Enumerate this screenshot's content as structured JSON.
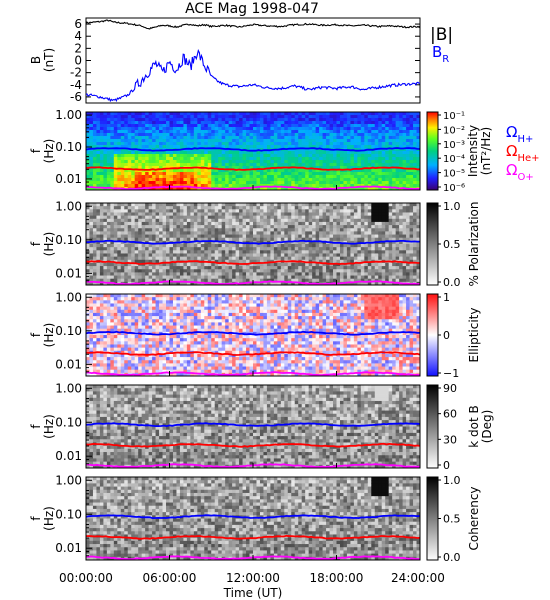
{
  "chart_data": [
    {
      "type": "line",
      "title": "ACE Mag 1998-047",
      "ylabel": "B",
      "yunit": "(nT)",
      "ylim": [
        -7,
        7
      ],
      "yticks": [
        "6",
        "4",
        "2",
        "0",
        "-2",
        "-4",
        "-6"
      ],
      "ytick_values": [
        6,
        4,
        2,
        0,
        -2,
        -4,
        -6
      ],
      "xlim_hours": [
        0,
        24
      ],
      "legend_placement": "right",
      "legend": [
        {
          "symbol": "|B|",
          "sub": "",
          "color": "#000000"
        },
        {
          "symbol": "B",
          "sub": "R",
          "color": "#0000ff"
        }
      ],
      "series": [
        {
          "name": "|B|",
          "color": "#000000",
          "x": [
            0,
            1,
            1.6,
            2,
            3,
            4,
            4.5,
            5,
            5.5,
            6,
            6.5,
            7,
            7.5,
            8,
            8.5,
            9,
            10,
            11,
            12,
            13,
            14,
            15,
            16,
            17,
            18,
            19,
            20,
            21,
            22,
            23,
            24
          ],
          "y": [
            6.2,
            6.4,
            6.6,
            6.3,
            6.1,
            5.7,
            5.2,
            5.5,
            5.8,
            5.7,
            5.5,
            5.8,
            6.0,
            5.7,
            5.9,
            5.6,
            5.8,
            5.5,
            5.9,
            5.7,
            5.6,
            5.9,
            6.0,
            5.8,
            5.9,
            5.7,
            5.8,
            5.6,
            5.7,
            5.5,
            5.6
          ]
        },
        {
          "name": "B_R",
          "color": "#0000ff",
          "x": [
            0,
            0.5,
            1,
            1.5,
            2,
            2.5,
            3,
            3.5,
            4,
            4.5,
            5,
            5.5,
            6,
            6.5,
            7,
            7.5,
            8,
            8.5,
            9,
            9.5,
            10,
            11,
            12,
            13,
            14,
            15,
            16,
            17,
            18,
            19,
            20,
            21,
            22,
            23,
            24
          ],
          "y": [
            -5.6,
            -5.8,
            -6.0,
            -6.3,
            -6.6,
            -6.2,
            -5.7,
            -4.6,
            -3.2,
            -1.8,
            -0.5,
            -2.0,
            -0.2,
            -1.5,
            0.5,
            -1.0,
            1.5,
            -0.8,
            -2.6,
            -3.5,
            -4.0,
            -4.3,
            -4.0,
            -4.5,
            -4.6,
            -4.2,
            -4.8,
            -4.4,
            -4.6,
            -4.3,
            -4.8,
            -4.4,
            -4.1,
            -3.9,
            -3.8
          ]
        }
      ]
    },
    {
      "type": "heatmap",
      "panel": "intensity",
      "ylabel": "f",
      "yunit": "(Hz)",
      "yticks": [
        "1.00",
        "0.10",
        "0.01"
      ],
      "ytick_values": [
        1,
        0.1,
        0.01
      ],
      "y_scale": "log",
      "ylim_hz": [
        0.004,
        1.25
      ],
      "colorbar_label": "Intensity",
      "colorbar_unit": "(nT²/Hz)",
      "colorbar_ticks": [
        "10⁻¹",
        "10⁻²",
        "10⁻³",
        "10⁻⁴",
        "10⁻⁵",
        "10⁻⁶"
      ],
      "colormap": "rainbow",
      "cyclotron_lines_hz": {
        "H+": 0.085,
        "He+": 0.021,
        "O+": 0.0053
      },
      "cyclotron_legend": [
        {
          "symbol": "Ω",
          "sub": "H+",
          "color": "#0000ff"
        },
        {
          "symbol": "Ω",
          "sub": "He+",
          "color": "#ff0000"
        },
        {
          "symbol": "Ω",
          "sub": "O+",
          "color": "#ff00ff"
        }
      ]
    },
    {
      "type": "heatmap",
      "panel": "polarization",
      "ylabel": "f",
      "yunit": "(Hz)",
      "yticks": [
        "1.00",
        "0.10",
        "0.01"
      ],
      "ytick_values": [
        1,
        0.1,
        0.01
      ],
      "y_scale": "log",
      "colorbar_label": "% Polarization",
      "colorbar_ticks": [
        "1.0",
        "0.5",
        "0.0"
      ],
      "colorbar_range": [
        0,
        1
      ],
      "colormap": "gray"
    },
    {
      "type": "heatmap",
      "panel": "ellipticity",
      "ylabel": "f",
      "yunit": "(Hz)",
      "yticks": [
        "1.00",
        "0.10",
        "0.01"
      ],
      "ytick_values": [
        1,
        0.1,
        0.01
      ],
      "y_scale": "log",
      "colorbar_label": "Ellipticity",
      "colorbar_ticks": [
        "1",
        "0",
        "−1"
      ],
      "colorbar_range": [
        -1,
        1
      ],
      "colormap": "blue-white-red"
    },
    {
      "type": "heatmap",
      "panel": "kdotb",
      "ylabel": "f",
      "yunit": "(Hz)",
      "yticks": [
        "1.00",
        "0.10",
        "0.01"
      ],
      "ytick_values": [
        1,
        0.1,
        0.01
      ],
      "y_scale": "log",
      "colorbar_label": "k dot B",
      "colorbar_unit": "(Deg)",
      "colorbar_ticks": [
        "90",
        "60",
        "30",
        "0"
      ],
      "colorbar_range": [
        0,
        90
      ],
      "colormap": "gray"
    },
    {
      "type": "heatmap",
      "panel": "coherency",
      "ylabel": "f",
      "yunit": "(Hz)",
      "yticks": [
        "1.00",
        "0.10",
        "0.01"
      ],
      "ytick_values": [
        1,
        0.1,
        0.01
      ],
      "y_scale": "log",
      "colorbar_label": "Coherency",
      "colorbar_ticks": [
        "1.0",
        "0.5",
        "0.0"
      ],
      "colorbar_range": [
        0,
        1
      ],
      "colormap": "gray"
    }
  ],
  "x_axis": {
    "label": "Time (UT)",
    "ticks": [
      "00:00:00",
      "06:00:00",
      "12:00:00",
      "18:00:00",
      "24:00:00"
    ],
    "tick_hours": [
      0,
      6,
      12,
      18,
      24
    ]
  },
  "colors": {
    "h_plus": "#0000ff",
    "he_plus": "#ff0000",
    "o_plus": "#ff00ff"
  }
}
